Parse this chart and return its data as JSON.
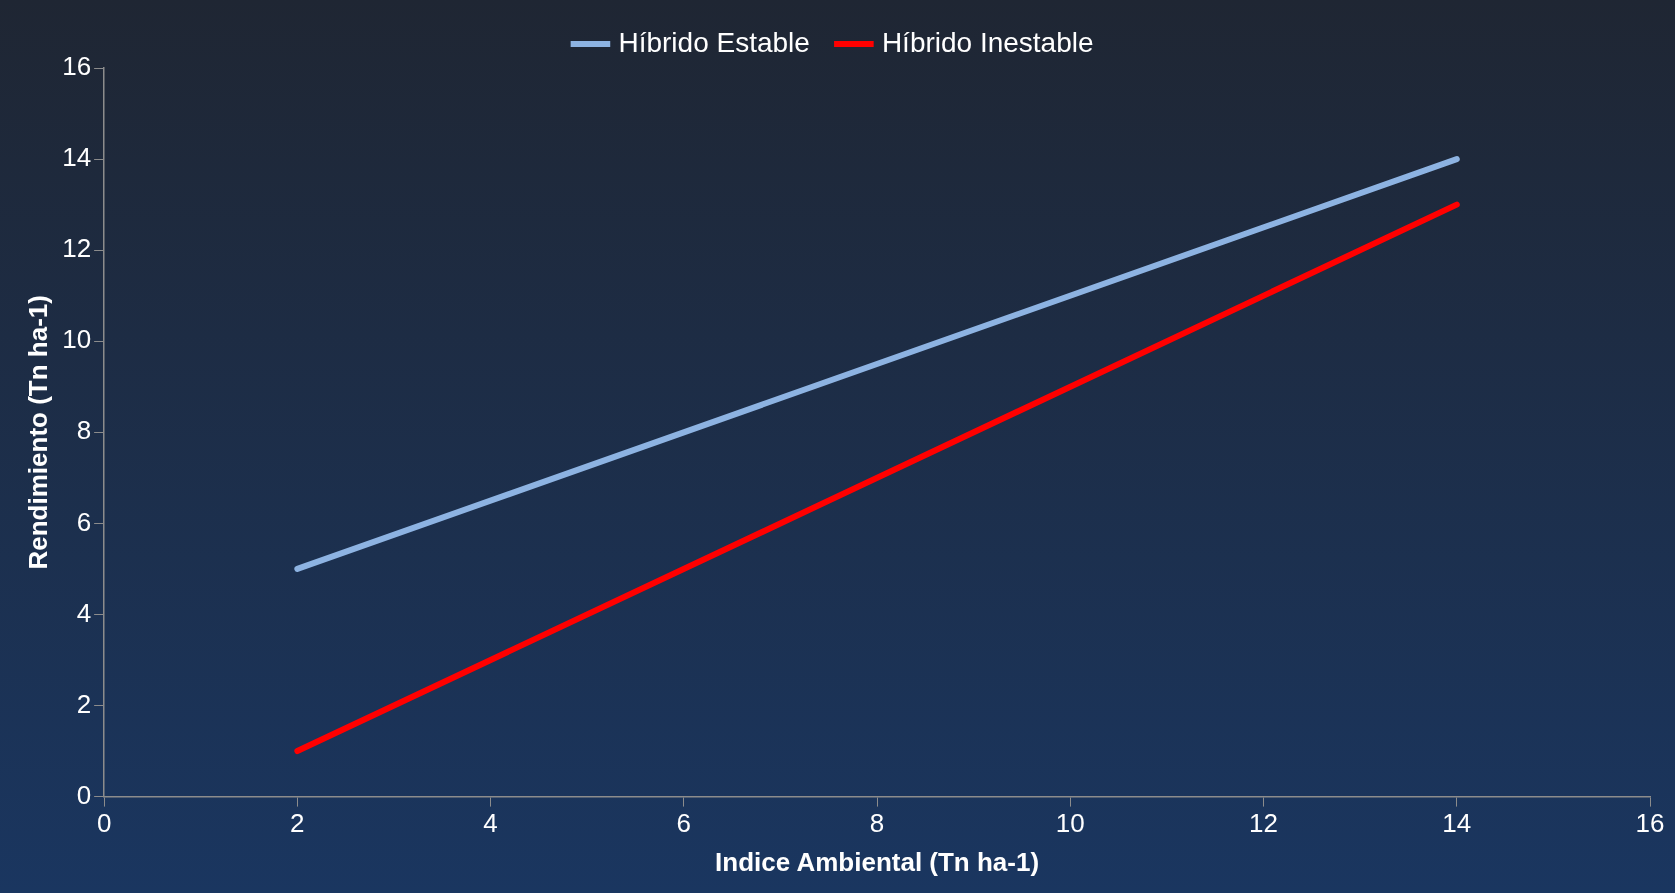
{
  "chart_data": {
    "type": "line",
    "xlabel": "Indice Ambiental (Tn ha-1)",
    "ylabel": "Rendimiento (Tn ha-1)",
    "series": [
      {
        "name": "Híbrido Estable",
        "color": "#8db3e2",
        "values": [
          5,
          14
        ]
      },
      {
        "name": "Híbrido Inestable",
        "color": "#ff0000",
        "values": [
          1,
          13
        ]
      }
    ],
    "x": [
      2,
      14
    ],
    "xlim": [
      0,
      16
    ],
    "xticks": [
      0,
      2,
      4,
      6,
      8,
      10,
      12,
      14,
      16
    ],
    "ylim": [
      0,
      16
    ],
    "yticks": [
      0,
      2,
      4,
      6,
      8,
      10,
      12,
      14,
      16
    ],
    "grid": false,
    "legend": "top",
    "marker": "none",
    "line_style": "solid"
  }
}
